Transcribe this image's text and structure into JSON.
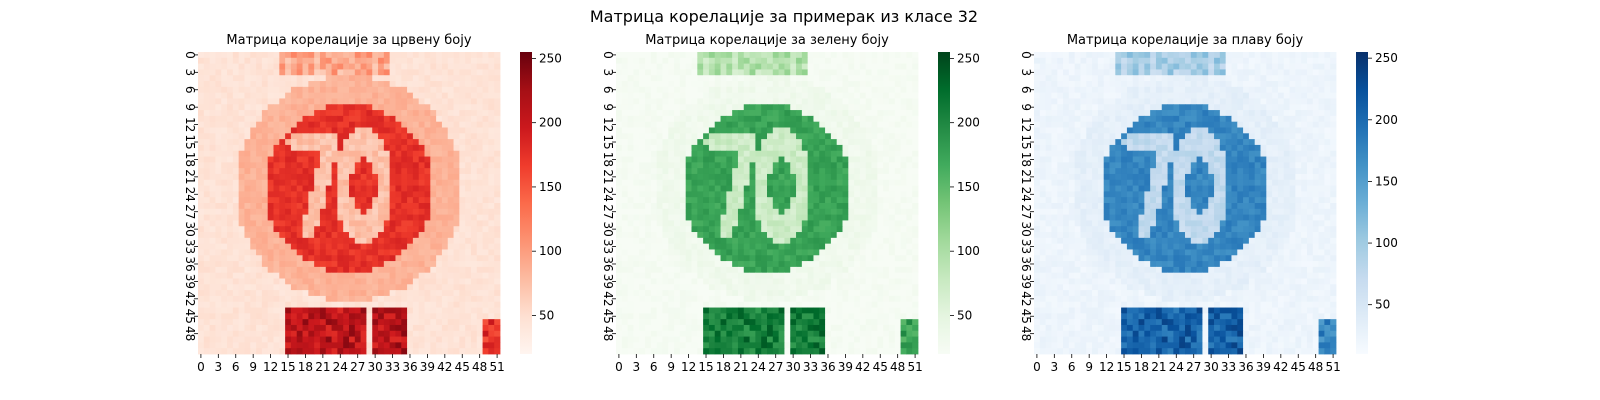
{
  "figure_title": "Матрица корелације за примерак из класе 32",
  "chart_data": [
    {
      "type": "heatmap",
      "title": "Матрица корелације за црвену боју",
      "colormap": "Reds",
      "color_low": "#fff5f0",
      "color_high": "#67000d",
      "stops": [
        "#fff5f0",
        "#fee0d2",
        "#fcbba1",
        "#fc9272",
        "#fb6a4a",
        "#ef3b2c",
        "#cb181d",
        "#a50f15",
        "#67000d"
      ],
      "value_range": [
        20,
        255
      ],
      "grid_size": [
        52,
        52
      ],
      "x_tick_labels": [
        "0",
        "3",
        "6",
        "9",
        "12",
        "15",
        "18",
        "21",
        "24",
        "27",
        "30",
        "33",
        "36",
        "39",
        "42",
        "45",
        "48",
        "51"
      ],
      "y_tick_labels": [
        "0",
        "3",
        "6",
        "9",
        "12",
        "15",
        "18",
        "21",
        "24",
        "27",
        "30",
        "33",
        "36",
        "39",
        "42",
        "45",
        "48"
      ],
      "colorbar_ticks": [
        "250",
        "200",
        "150",
        "100",
        "50"
      ],
      "colorbar_tick_values": [
        250,
        200,
        150,
        100,
        50
      ]
    },
    {
      "type": "heatmap",
      "title": "Матрица корелације за зелену боју",
      "colormap": "Greens",
      "color_low": "#f7fcf5",
      "color_high": "#00441b",
      "stops": [
        "#f7fcf5",
        "#e5f5e0",
        "#c7e9c0",
        "#a1d99b",
        "#74c476",
        "#41ab5d",
        "#238b45",
        "#006d2c",
        "#00441b"
      ],
      "value_range": [
        20,
        255
      ],
      "grid_size": [
        52,
        52
      ],
      "x_tick_labels": [
        "0",
        "3",
        "6",
        "9",
        "12",
        "15",
        "18",
        "21",
        "24",
        "27",
        "30",
        "33",
        "36",
        "39",
        "42",
        "45",
        "48",
        "51"
      ],
      "y_tick_labels": [
        "0",
        "3",
        "6",
        "9",
        "12",
        "15",
        "18",
        "21",
        "24",
        "27",
        "30",
        "33",
        "36",
        "39",
        "42",
        "45",
        "48"
      ],
      "colorbar_ticks": [
        "250",
        "200",
        "150",
        "100",
        "50"
      ],
      "colorbar_tick_values": [
        250,
        200,
        150,
        100,
        50
      ]
    },
    {
      "type": "heatmap",
      "title": "Матрица корелације за плаву боју",
      "colormap": "Blues",
      "color_low": "#f7fbff",
      "color_high": "#08306b",
      "stops": [
        "#f7fbff",
        "#deebf7",
        "#c6dbef",
        "#9ecae1",
        "#6baed6",
        "#4292c6",
        "#2171b5",
        "#08519c",
        "#08306b"
      ],
      "value_range": [
        10,
        255
      ],
      "grid_size": [
        52,
        52
      ],
      "x_tick_labels": [
        "0",
        "3",
        "6",
        "9",
        "12",
        "15",
        "18",
        "21",
        "24",
        "27",
        "30",
        "33",
        "36",
        "39",
        "42",
        "45",
        "48",
        "51"
      ],
      "y_tick_labels": [
        "0",
        "3",
        "6",
        "9",
        "12",
        "15",
        "18",
        "21",
        "24",
        "27",
        "30",
        "33",
        "36",
        "39",
        "42",
        "45",
        "48"
      ],
      "colorbar_ticks": [
        "250",
        "200",
        "150",
        "100",
        "50"
      ],
      "colorbar_tick_values": [
        250,
        200,
        150,
        100,
        50
      ]
    }
  ]
}
